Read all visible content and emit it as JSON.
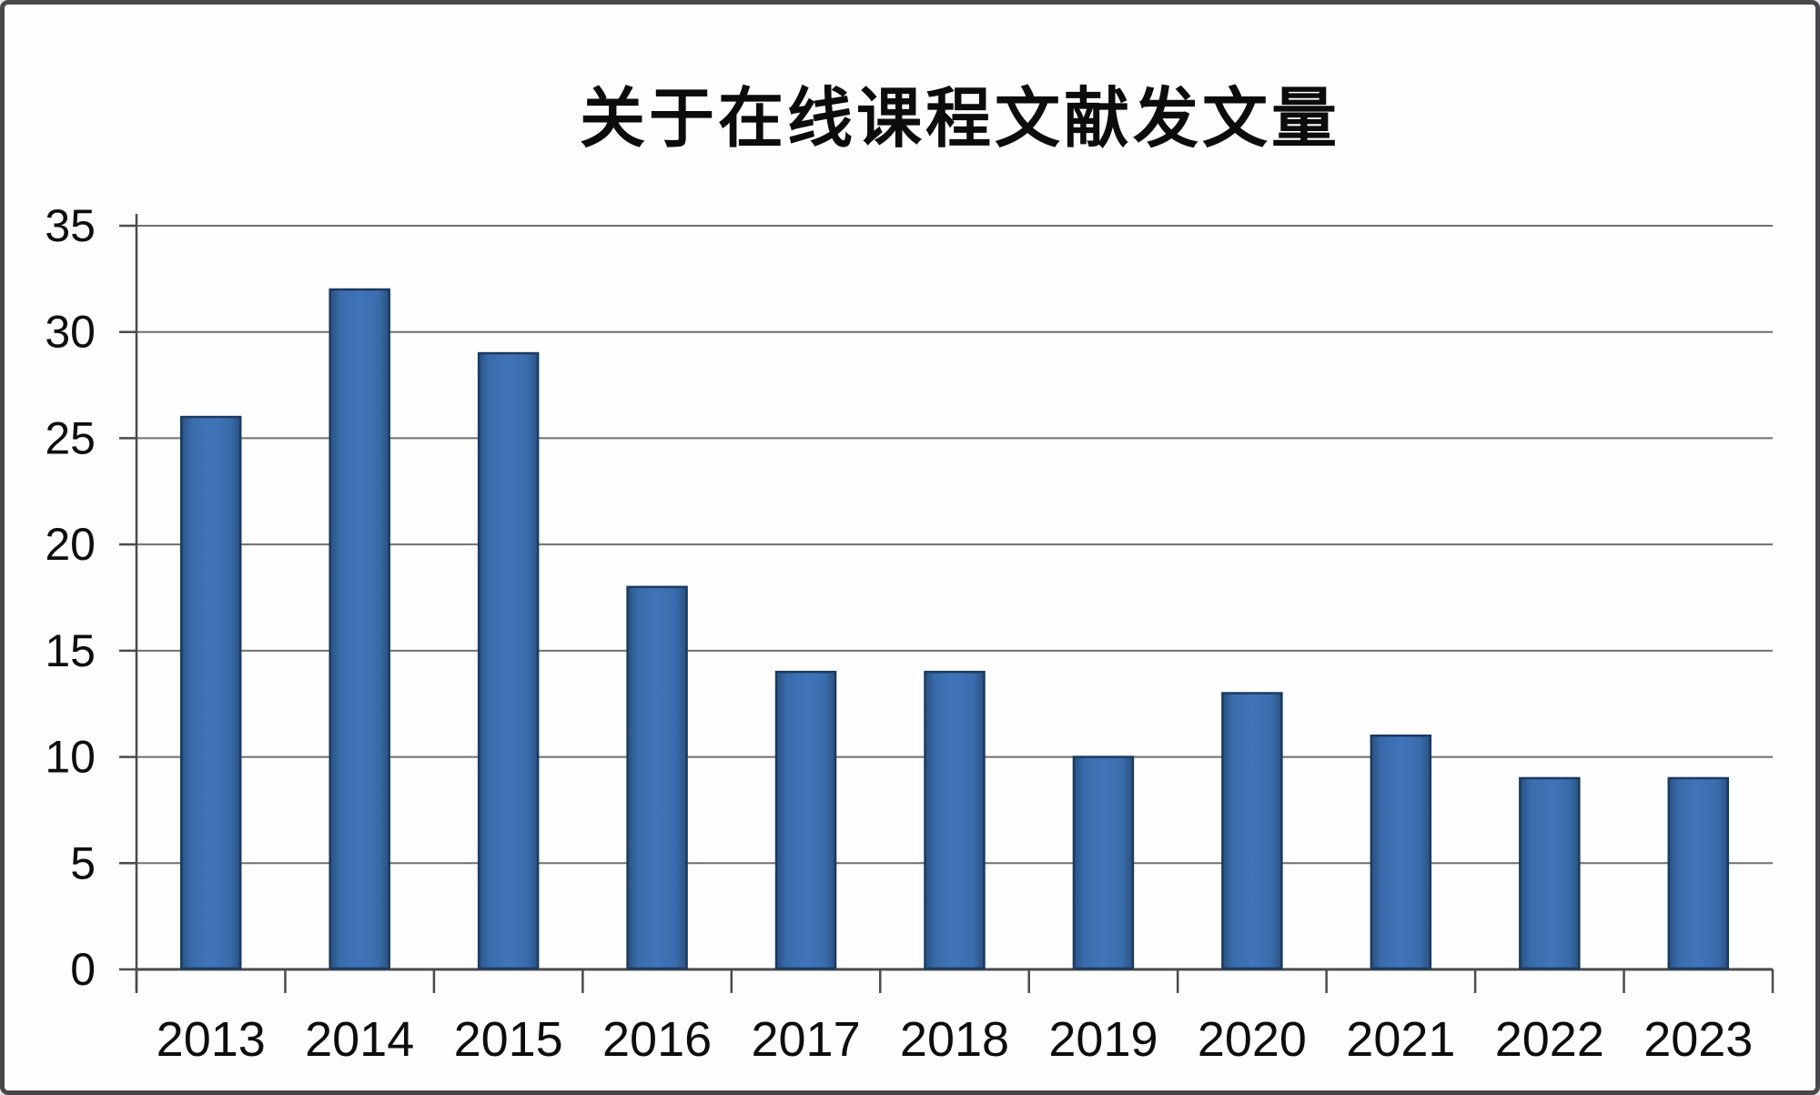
{
  "frame": {
    "background": "#fefefe",
    "border_color": "#47474c"
  },
  "chart_data": {
    "type": "bar",
    "title": "关于在线课程文献发文量",
    "categories": [
      "2013",
      "2014",
      "2015",
      "2016",
      "2017",
      "2018",
      "2019",
      "2020",
      "2021",
      "2022",
      "2023"
    ],
    "values": [
      26,
      32,
      29,
      18,
      14,
      14,
      10,
      13,
      11,
      9,
      9
    ],
    "xlabel": "",
    "ylabel": "",
    "ylim": [
      0,
      35
    ],
    "y_ticks": [
      0,
      5,
      10,
      15,
      20,
      25,
      30,
      35
    ],
    "grid": true,
    "legend": false,
    "colors": {
      "bar_center": "#4074b8",
      "bar_mid": "#3a6cac",
      "bar_edge_shade": "#2a5182",
      "bar_outline": "#1b3a5f",
      "gridline": "#6f6f6f",
      "axis": "#4b4b4b",
      "text": "#0d0d0d"
    }
  }
}
